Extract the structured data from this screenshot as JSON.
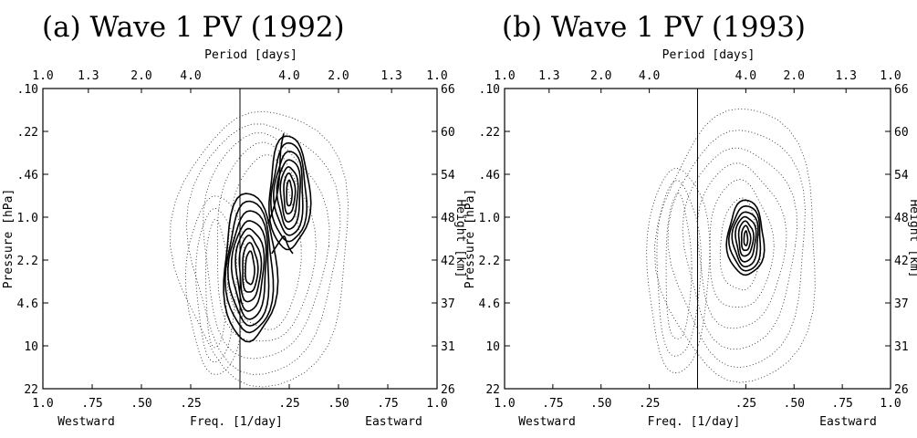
{
  "chart_data": [
    {
      "type": "contour",
      "title": "(a) Wave 1 PV (1992)",
      "top_axis_label": "Period [days]",
      "top_ticks_west": [
        "1.0",
        "1.3",
        "2.0",
        "4.0"
      ],
      "top_ticks_east": [
        "4.0",
        "2.0",
        "1.3",
        "1.0"
      ],
      "bottom_ticks": [
        "1.0",
        ".75",
        ".50",
        ".25",
        ".25",
        ".50",
        ".75",
        "1.0"
      ],
      "bottom_axis_label_west": "Westward",
      "bottom_axis_label_mid": "Freq. [1/day]",
      "bottom_axis_label_east": "Eastward",
      "left_axis_label": "Pressure [hPa]",
      "left_ticks": [
        ".10",
        ".22",
        ".46",
        "1.0",
        "2.2",
        "4.6",
        "10",
        "22"
      ],
      "right_axis_label": "Height [km]",
      "right_ticks": [
        "66",
        "60",
        "54",
        "48",
        "42",
        "37",
        "31",
        "26"
      ],
      "xlim": [
        -1.0,
        1.0
      ],
      "solid_peaks": [
        {
          "freq": 0.05,
          "height": 42,
          "label": "eastward low-frequency maximum"
        },
        {
          "freq": 0.25,
          "height": 52,
          "label": "eastward ~4-day maximum"
        }
      ]
    },
    {
      "type": "contour",
      "title": "(b) Wave 1 PV (1993)",
      "top_axis_label": "Period [days]",
      "top_ticks_west": [
        "1.0",
        "1.3",
        "2.0",
        "4.0"
      ],
      "top_ticks_east": [
        "4.0",
        "2.0",
        "1.3",
        "1.0"
      ],
      "bottom_ticks": [
        "1.0",
        ".75",
        ".50",
        ".25",
        ".25",
        ".50",
        ".75",
        "1.0"
      ],
      "bottom_axis_label_west": "Westward",
      "bottom_axis_label_mid": "Freq. [1/day]",
      "bottom_axis_label_east": "Eastward",
      "left_axis_label": "Pressure [hPa]",
      "left_ticks": [
        ".10",
        ".22",
        ".46",
        "1.0",
        "2.2",
        "4.6",
        "10",
        "22"
      ],
      "right_axis_label": "Height [km]",
      "right_ticks": [
        "66",
        "60",
        "54",
        "48",
        "42",
        "37",
        "31",
        "26"
      ],
      "xlim": [
        -1.0,
        1.0
      ],
      "solid_peaks": [
        {
          "freq": 0.25,
          "height": 46,
          "label": "eastward ~4-day maximum"
        }
      ]
    }
  ]
}
